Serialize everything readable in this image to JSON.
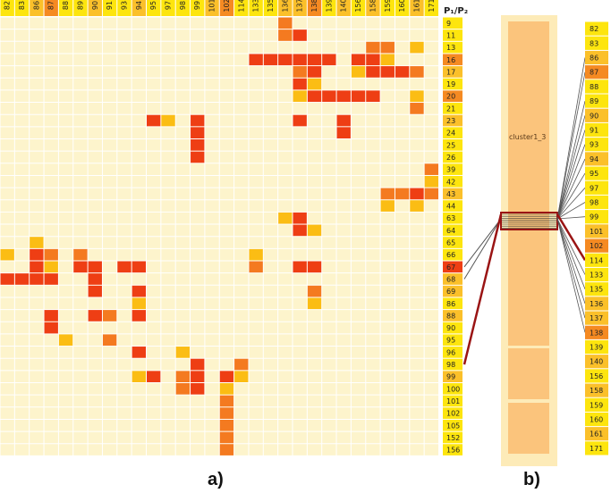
{
  "palette": {
    "background_cell": "#fdf4cc",
    "grid_line": "#ffffff",
    "level1": "#fbbd14",
    "level2": "#f47a20",
    "level3": "#ee3e14",
    "header_level0": "#fde50e",
    "header_level1": "#fbc02a",
    "header_level2": "#f58a22",
    "cluster_outer": "#fdebb8",
    "cluster_inner": "#fbc47c",
    "link_line": "#555555",
    "highlight_line": "#9a1414"
  },
  "matrix": {
    "corner_label": "P₁/P₂",
    "columns": [
      "82",
      "83",
      "86",
      "87",
      "88",
      "89",
      "90",
      "91",
      "93",
      "94",
      "95",
      "97",
      "98",
      "99",
      "101",
      "102",
      "114",
      "133",
      "135",
      "136",
      "137",
      "138",
      "139",
      "140",
      "156",
      "158",
      "159",
      "160",
      "161",
      "171"
    ],
    "column_levels": [
      0,
      0,
      1,
      2,
      0,
      0,
      1,
      0,
      0,
      1,
      0,
      0,
      0,
      0,
      1,
      2,
      0,
      0,
      0,
      1,
      1,
      2,
      0,
      1,
      0,
      1,
      0,
      0,
      1,
      0
    ],
    "rows": [
      "9",
      "11",
      "13",
      "16",
      "17",
      "19",
      "20",
      "21",
      "23",
      "24",
      "25",
      "26",
      "39",
      "42",
      "43",
      "44",
      "63",
      "64",
      "65",
      "66",
      "67",
      "68",
      "69",
      "86",
      "88",
      "90",
      "95",
      "96",
      "98",
      "99",
      "100",
      "101",
      "102",
      "105",
      "152",
      "156"
    ],
    "row_levels": [
      0,
      0,
      0,
      2,
      1,
      0,
      2,
      0,
      1,
      0,
      0,
      0,
      0,
      0,
      1,
      0,
      0,
      0,
      0,
      0,
      3,
      1,
      1,
      0,
      1,
      0,
      0,
      0,
      0,
      1,
      0,
      0,
      0,
      0,
      0,
      0
    ],
    "cells": [
      [
        0,
        19,
        2
      ],
      [
        1,
        19,
        2
      ],
      [
        1,
        20,
        3
      ],
      [
        2,
        25,
        2
      ],
      [
        2,
        26,
        2
      ],
      [
        2,
        28,
        1
      ],
      [
        3,
        17,
        3
      ],
      [
        3,
        18,
        3
      ],
      [
        3,
        19,
        3
      ],
      [
        3,
        20,
        3
      ],
      [
        3,
        21,
        3
      ],
      [
        3,
        22,
        3
      ],
      [
        3,
        24,
        3
      ],
      [
        3,
        25,
        3
      ],
      [
        3,
        26,
        1
      ],
      [
        4,
        20,
        2
      ],
      [
        4,
        21,
        3
      ],
      [
        4,
        24,
        1
      ],
      [
        4,
        25,
        3
      ],
      [
        4,
        26,
        3
      ],
      [
        4,
        27,
        3
      ],
      [
        4,
        28,
        2
      ],
      [
        5,
        20,
        3
      ],
      [
        5,
        21,
        1
      ],
      [
        6,
        20,
        1
      ],
      [
        6,
        21,
        3
      ],
      [
        6,
        22,
        3
      ],
      [
        6,
        23,
        3
      ],
      [
        6,
        24,
        3
      ],
      [
        6,
        25,
        3
      ],
      [
        6,
        28,
        1
      ],
      [
        7,
        28,
        2
      ],
      [
        8,
        10,
        3
      ],
      [
        8,
        11,
        1
      ],
      [
        8,
        13,
        3
      ],
      [
        8,
        20,
        3
      ],
      [
        8,
        23,
        3
      ],
      [
        9,
        13,
        3
      ],
      [
        9,
        23,
        3
      ],
      [
        10,
        13,
        3
      ],
      [
        11,
        13,
        3
      ],
      [
        12,
        29,
        2
      ],
      [
        13,
        29,
        1
      ],
      [
        14,
        26,
        2
      ],
      [
        14,
        27,
        2
      ],
      [
        14,
        28,
        3
      ],
      [
        14,
        29,
        2
      ],
      [
        15,
        26,
        1
      ],
      [
        15,
        28,
        1
      ],
      [
        16,
        19,
        1
      ],
      [
        16,
        20,
        3
      ],
      [
        17,
        20,
        3
      ],
      [
        17,
        21,
        1
      ],
      [
        18,
        2,
        1
      ],
      [
        19,
        0,
        1
      ],
      [
        19,
        2,
        3
      ],
      [
        19,
        3,
        2
      ],
      [
        19,
        5,
        2
      ],
      [
        19,
        17,
        1
      ],
      [
        20,
        2,
        3
      ],
      [
        20,
        3,
        1
      ],
      [
        20,
        5,
        3
      ],
      [
        20,
        6,
        3
      ],
      [
        20,
        8,
        3
      ],
      [
        20,
        9,
        3
      ],
      [
        20,
        17,
        2
      ],
      [
        20,
        20,
        3
      ],
      [
        20,
        21,
        3
      ],
      [
        21,
        0,
        3
      ],
      [
        21,
        1,
        3
      ],
      [
        21,
        2,
        3
      ],
      [
        21,
        3,
        3
      ],
      [
        21,
        6,
        3
      ],
      [
        22,
        6,
        3
      ],
      [
        22,
        9,
        3
      ],
      [
        22,
        21,
        2
      ],
      [
        23,
        9,
        1
      ],
      [
        23,
        21,
        1
      ],
      [
        24,
        3,
        3
      ],
      [
        24,
        6,
        3
      ],
      [
        24,
        7,
        2
      ],
      [
        24,
        9,
        3
      ],
      [
        25,
        3,
        3
      ],
      [
        26,
        4,
        1
      ],
      [
        26,
        7,
        2
      ],
      [
        27,
        9,
        3
      ],
      [
        27,
        12,
        1
      ],
      [
        28,
        13,
        3
      ],
      [
        28,
        16,
        2
      ],
      [
        29,
        9,
        1
      ],
      [
        29,
        10,
        3
      ],
      [
        29,
        12,
        2
      ],
      [
        29,
        13,
        3
      ],
      [
        29,
        15,
        3
      ],
      [
        29,
        16,
        1
      ],
      [
        30,
        12,
        2
      ],
      [
        30,
        13,
        3
      ],
      [
        30,
        15,
        1
      ],
      [
        31,
        15,
        2
      ],
      [
        32,
        15,
        2
      ],
      [
        33,
        15,
        2
      ],
      [
        34,
        15,
        2
      ],
      [
        35,
        15,
        2
      ]
    ]
  },
  "cluster": {
    "label": "cluster1_3",
    "right_labels": [
      "82",
      "83",
      "86",
      "87",
      "88",
      "89",
      "90",
      "91",
      "93",
      "94",
      "95",
      "97",
      "98",
      "99",
      "101",
      "102",
      "114",
      "133",
      "135",
      "136",
      "137",
      "138",
      "139",
      "140",
      "156",
      "158",
      "159",
      "160",
      "161",
      "171"
    ],
    "right_levels": [
      0,
      0,
      1,
      2,
      0,
      0,
      1,
      0,
      0,
      1,
      0,
      0,
      0,
      0,
      1,
      2,
      0,
      0,
      0,
      1,
      1,
      2,
      0,
      1,
      0,
      1,
      0,
      0,
      1,
      0
    ],
    "left_links": [
      "67",
      "68",
      "98"
    ],
    "right_links": [
      "86",
      "87",
      "89",
      "90",
      "91",
      "93",
      "94",
      "95",
      "97",
      "98",
      "99",
      "114",
      "133",
      "135",
      "136",
      "137",
      "138"
    ]
  },
  "captions": {
    "a": "a)",
    "b": "b)"
  }
}
